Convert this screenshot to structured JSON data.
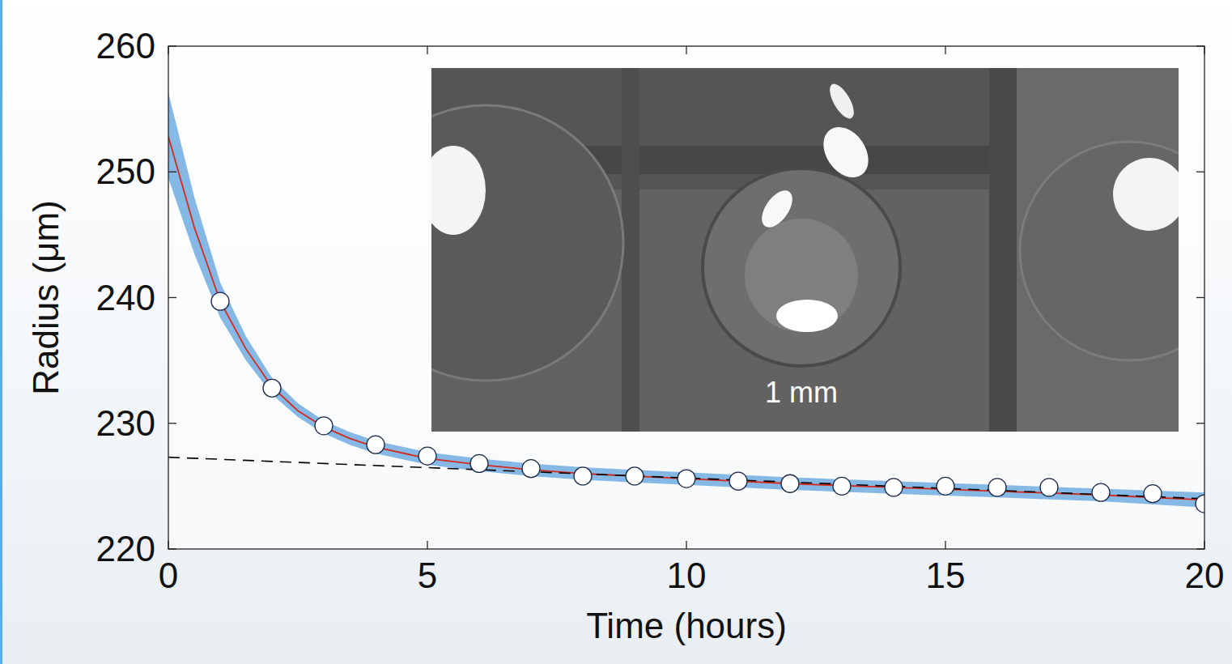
{
  "chart_data": {
    "type": "line",
    "x_label": "Time (hours)",
    "y_label": "Radius (μm)",
    "xlim": [
      0,
      20
    ],
    "xticks": [
      0,
      5,
      10,
      15,
      20
    ],
    "ylim": [
      220,
      260
    ],
    "yticks": [
      220,
      230,
      240,
      250,
      260
    ],
    "grid": false,
    "annotations": [
      "1 mm"
    ],
    "series": [
      {
        "type": "band",
        "color": "#85b8e4",
        "x": [
          0,
          0.5,
          1,
          1.5,
          2,
          2.5,
          3,
          3.5,
          4,
          5,
          6,
          7,
          8,
          10,
          12,
          14,
          16,
          18,
          20
        ],
        "lower": [
          249.5,
          243.5,
          238.4,
          235.0,
          232.3,
          230.5,
          229.2,
          228.3,
          227.6,
          226.7,
          226.2,
          225.8,
          225.5,
          225.1,
          224.7,
          224.4,
          224.1,
          223.8,
          223.3
        ],
        "upper": [
          256.3,
          248.0,
          241.2,
          236.9,
          233.6,
          231.6,
          230.2,
          229.3,
          228.6,
          227.7,
          227.2,
          226.8,
          226.5,
          226.1,
          225.7,
          225.4,
          225.1,
          224.8,
          224.5
        ]
      },
      {
        "type": "line",
        "color": "#d42a1e",
        "line_style": "solid",
        "x": [
          0,
          0.5,
          1,
          1.5,
          2,
          2.5,
          3,
          3.5,
          4,
          5,
          6,
          7,
          8,
          10,
          12,
          14,
          16,
          18,
          20
        ],
        "values": [
          252.8,
          245.6,
          239.7,
          235.9,
          232.9,
          231.0,
          229.7,
          228.8,
          228.1,
          227.2,
          226.7,
          226.3,
          226.0,
          225.6,
          225.2,
          224.9,
          224.6,
          224.3,
          223.9
        ]
      },
      {
        "type": "line",
        "color": "#000000",
        "line_style": "dashed",
        "x": [
          0,
          20
        ],
        "values": [
          227.3,
          224.0
        ]
      },
      {
        "type": "scatter",
        "color": "#ffffff",
        "marker": "circle",
        "x": [
          1,
          2,
          3,
          4,
          5,
          6,
          7,
          8,
          9,
          10,
          11,
          12,
          13,
          14,
          15,
          16,
          17,
          18,
          19,
          20
        ],
        "values": [
          239.7,
          232.8,
          229.8,
          228.3,
          227.4,
          226.8,
          226.4,
          225.8,
          225.8,
          225.6,
          225.4,
          225.2,
          225.0,
          224.9,
          225.0,
          224.9,
          224.9,
          224.5,
          224.4,
          223.6
        ]
      }
    ]
  }
}
